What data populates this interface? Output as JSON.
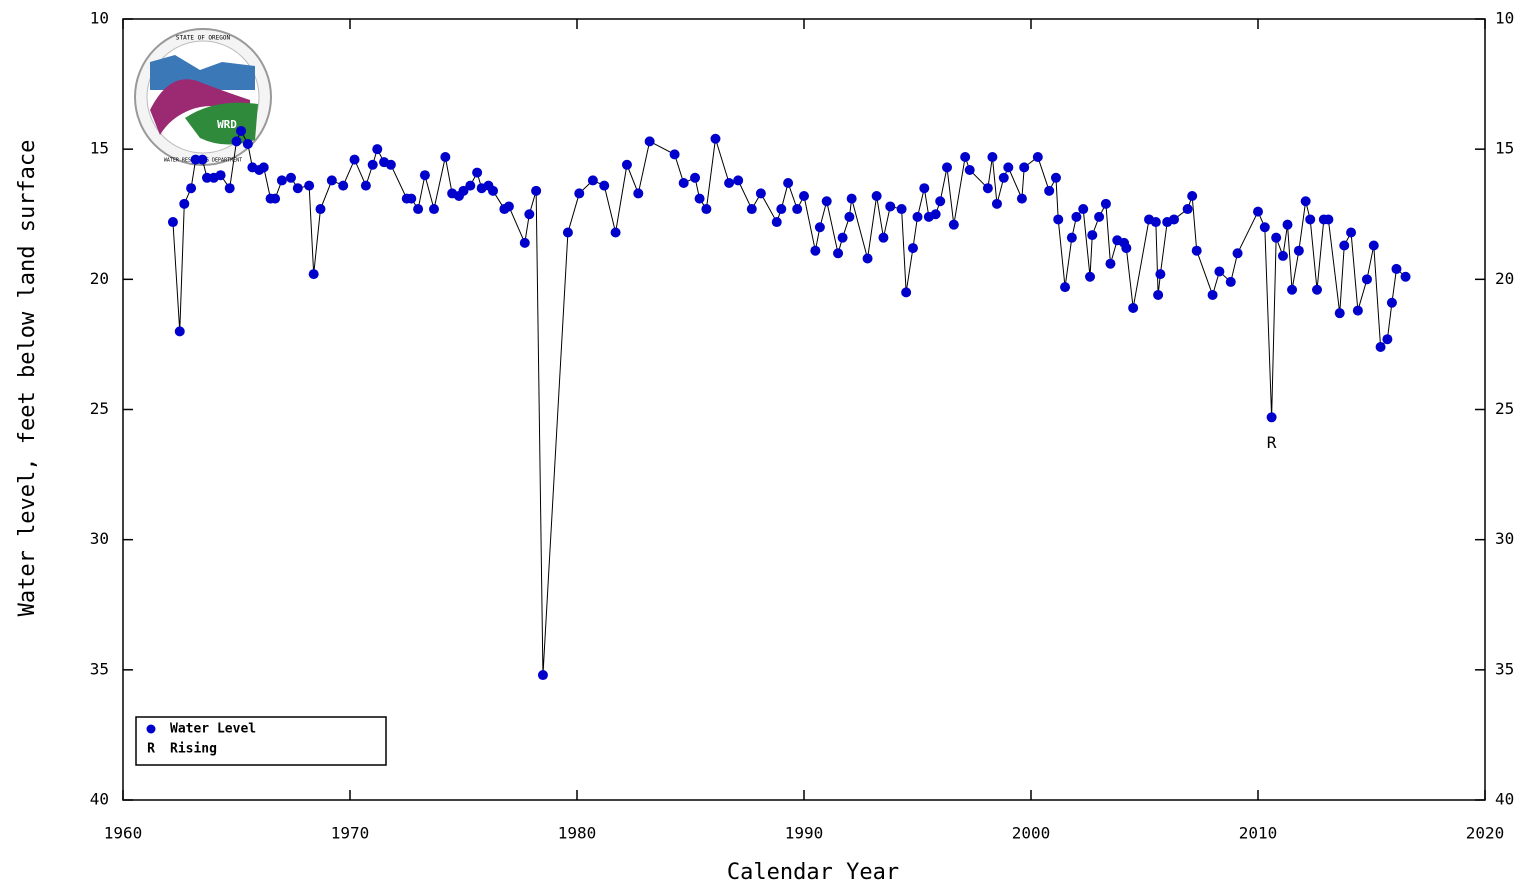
{
  "chart_data": {
    "type": "line",
    "x_label": "Calendar Year",
    "y_label": "Water level, feet below land surface",
    "xlim": [
      1960,
      2020
    ],
    "xticks": [
      1960,
      1970,
      1980,
      1990,
      2000,
      2010,
      2020
    ],
    "ylim": [
      40,
      10
    ],
    "yticks": [
      10,
      15,
      20,
      25,
      30,
      35,
      40
    ],
    "y2lim": [
      40,
      10
    ],
    "y2ticks": [
      10,
      15,
      20,
      25,
      30,
      35,
      40
    ],
    "legend": "lower left",
    "legend_extra": [
      {
        "symbol": "R",
        "label": "Rising"
      }
    ],
    "annotations": [
      {
        "text": "R",
        "x": 2010.6,
        "y": 26.3
      }
    ],
    "logo": {
      "top": "STATE OF OREGON",
      "center": "WRD",
      "bottom": "WATER RESOURCES DEPARTMENT"
    },
    "x": [
      1962.2,
      1962.5,
      1962.7,
      1963.0,
      1963.2,
      1963.5,
      1963.7,
      1964.0,
      1964.3,
      1964.7,
      1965.0,
      1965.2,
      1965.5,
      1965.7,
      1966.0,
      1966.2,
      1966.5,
      1966.7,
      1967.0,
      1967.4,
      1967.7,
      1968.2,
      1968.4,
      1968.7,
      1969.2,
      1969.7,
      1970.2,
      1970.7,
      1971.0,
      1971.2,
      1971.5,
      1971.8,
      1972.5,
      1972.7,
      1973.0,
      1973.3,
      1973.7,
      1974.2,
      1974.5,
      1974.8,
      1975.0,
      1975.3,
      1975.6,
      1975.8,
      1976.1,
      1976.3,
      1976.8,
      1977.0,
      1977.7,
      1977.9,
      1978.2,
      1978.5,
      1979.6,
      1980.1,
      1980.7,
      1981.2,
      1981.7,
      1982.2,
      1982.7,
      1983.2,
      1984.3,
      1984.7,
      1985.2,
      1985.4,
      1985.7,
      1986.1,
      1986.7,
      1987.1,
      1987.7,
      1988.1,
      1988.8,
      1989.0,
      1989.3,
      1989.7,
      1990.0,
      1990.5,
      1990.7,
      1991.0,
      1991.5,
      1991.7,
      1992.0,
      1992.1,
      1992.8,
      1993.2,
      1993.5,
      1993.8,
      1994.3,
      1994.5,
      1994.8,
      1995.0,
      1995.3,
      1995.5,
      1995.8,
      1996.0,
      1996.3,
      1996.6,
      1997.1,
      1997.3,
      1998.1,
      1998.3,
      1998.5,
      1998.8,
      1999.0,
      1999.6,
      1999.7,
      2000.3,
      2000.8,
      2001.1,
      2001.2,
      2001.5,
      2001.8,
      2002.0,
      2002.3,
      2002.6,
      2002.7,
      2003.0,
      2003.3,
      2003.5,
      2003.8,
      2004.1,
      2004.2,
      2004.5,
      2005.2,
      2005.5,
      2005.6,
      2005.7,
      2006.0,
      2006.3,
      2006.9,
      2007.1,
      2007.3,
      2008.0,
      2008.3,
      2008.8,
      2009.1,
      2010.0,
      2010.3,
      2010.6,
      2010.8,
      2011.1,
      2011.3,
      2011.5,
      2011.8,
      2012.1,
      2012.3,
      2012.6,
      2012.9,
      2013.1,
      2013.6,
      2013.8,
      2014.1,
      2014.4,
      2014.8,
      2015.1,
      2015.4,
      2015.7,
      2015.9,
      2016.1,
      2016.5
    ],
    "series": [
      {
        "name": "Water Level",
        "color": "#0000cc",
        "values": [
          17.8,
          22.0,
          17.1,
          16.5,
          15.4,
          15.4,
          16.1,
          16.1,
          16.0,
          16.5,
          14.7,
          14.3,
          14.8,
          15.7,
          15.8,
          15.7,
          16.9,
          16.9,
          16.2,
          16.1,
          16.5,
          16.4,
          19.8,
          17.3,
          16.2,
          16.4,
          15.4,
          16.4,
          15.6,
          15.0,
          15.5,
          15.6,
          16.9,
          16.9,
          17.3,
          16.0,
          17.3,
          15.3,
          16.7,
          16.8,
          16.6,
          16.4,
          15.9,
          16.5,
          16.4,
          16.6,
          17.3,
          17.2,
          18.6,
          17.5,
          16.6,
          35.2,
          18.2,
          16.7,
          16.2,
          16.4,
          18.2,
          15.6,
          16.7,
          14.7,
          15.2,
          16.3,
          16.1,
          16.9,
          17.3,
          14.6,
          16.3,
          16.2,
          17.3,
          16.7,
          17.8,
          17.3,
          16.3,
          17.3,
          16.8,
          18.9,
          18.0,
          17.0,
          19.0,
          18.4,
          17.6,
          16.9,
          19.2,
          16.8,
          18.4,
          17.2,
          17.3,
          20.5,
          18.8,
          17.6,
          16.5,
          17.6,
          17.5,
          17.0,
          15.7,
          17.9,
          15.3,
          15.8,
          16.5,
          15.3,
          17.1,
          16.1,
          15.7,
          16.9,
          15.7,
          15.3,
          16.6,
          16.1,
          17.7,
          20.3,
          18.4,
          17.6,
          17.3,
          19.9,
          18.3,
          17.6,
          17.1,
          19.4,
          18.5,
          18.6,
          18.8,
          21.1,
          17.7,
          17.8,
          20.6,
          19.8,
          17.8,
          17.7,
          17.3,
          16.8,
          18.9,
          20.6,
          19.7,
          20.1,
          19.0,
          17.4,
          18.0,
          25.3,
          18.4,
          19.1,
          17.9,
          20.4,
          18.9,
          17.0,
          17.7,
          20.4,
          17.7,
          17.7,
          21.3,
          18.7,
          18.2,
          21.2,
          20.0,
          18.7,
          22.6,
          22.3,
          20.9,
          19.6,
          19.9
        ]
      }
    ]
  }
}
